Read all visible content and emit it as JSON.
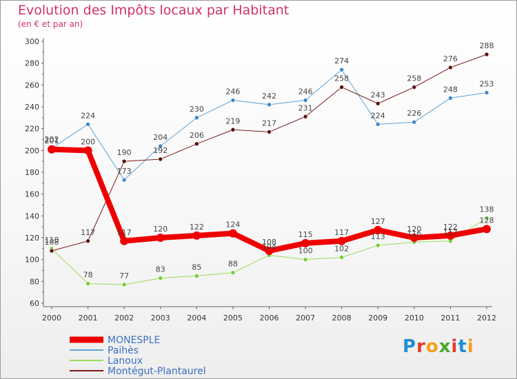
{
  "title": "Evolution des Impôts locaux par Habitant",
  "subtitle": "(en € et par an)",
  "logo": {
    "text": "Proxiti",
    "letter_colors": [
      "#1f8fd8",
      "#e03c2c",
      "#f3a01a",
      "#4aa82a",
      "#e03c2c",
      "#1f8fd8",
      "#f3a01a"
    ]
  },
  "chart_data": {
    "type": "line",
    "title": "Evolution des Impôts locaux par Habitant",
    "subtitle": "(en € et par an)",
    "x": [
      "2000",
      "2001",
      "2002",
      "2003",
      "2004",
      "2005",
      "2006",
      "2007",
      "2008",
      "2009",
      "2010",
      "2011",
      "2012"
    ],
    "ylim": [
      60,
      300
    ],
    "yticks": [
      60,
      80,
      100,
      120,
      140,
      160,
      180,
      200,
      220,
      240,
      260,
      280,
      300
    ],
    "grid": false,
    "legend_position": "bottom-left",
    "series": [
      {
        "name": "Lanoux",
        "color": "#99dd55",
        "marker": "#77cc33",
        "width": 1,
        "values": [
          110,
          78,
          77,
          83,
          85,
          88,
          104,
          100,
          102,
          113,
          116,
          117,
          138
        ],
        "labels": [
          "110",
          "78",
          "77",
          "83",
          "85",
          "88",
          "104",
          "100",
          "102",
          "113",
          "116",
          "117",
          "138"
        ]
      },
      {
        "name": "Paihès",
        "color": "#5ba3d9",
        "marker": "#3f88c8",
        "width": 1,
        "values": [
          202,
          224,
          173,
          204,
          230,
          246,
          242,
          246,
          274,
          224,
          226,
          248,
          253
        ],
        "labels": [
          "202",
          "224",
          "173",
          "204",
          "230",
          "246",
          "242",
          "246",
          "274",
          "224",
          "226",
          "248",
          "253"
        ]
      },
      {
        "name": "Montégut-Plantaurel",
        "color": "#7a1a1a",
        "marker": "#5a1010",
        "width": 1,
        "values": [
          108,
          117,
          190,
          192,
          206,
          219,
          217,
          231,
          258,
          243,
          258,
          276,
          288
        ],
        "labels": [
          "108",
          "117",
          "190",
          "192",
          "206",
          "219",
          "217",
          "231",
          "258",
          "243",
          "258",
          "276",
          "288"
        ]
      },
      {
        "name": "MONESPLE",
        "color": "#ee0000",
        "marker": "#ee0000",
        "width": 8,
        "values": [
          201,
          200,
          117,
          120,
          122,
          124,
          108,
          115,
          117,
          127,
          120,
          122,
          128
        ],
        "labels": [
          "201",
          "200",
          "117",
          "120",
          "122",
          "124",
          "108",
          "115",
          "117",
          "127",
          "120",
          "122",
          "128"
        ]
      }
    ],
    "legend": [
      "MONESPLE",
      "Paihès",
      "Lanoux",
      "Montégut-Plantaurel"
    ]
  }
}
